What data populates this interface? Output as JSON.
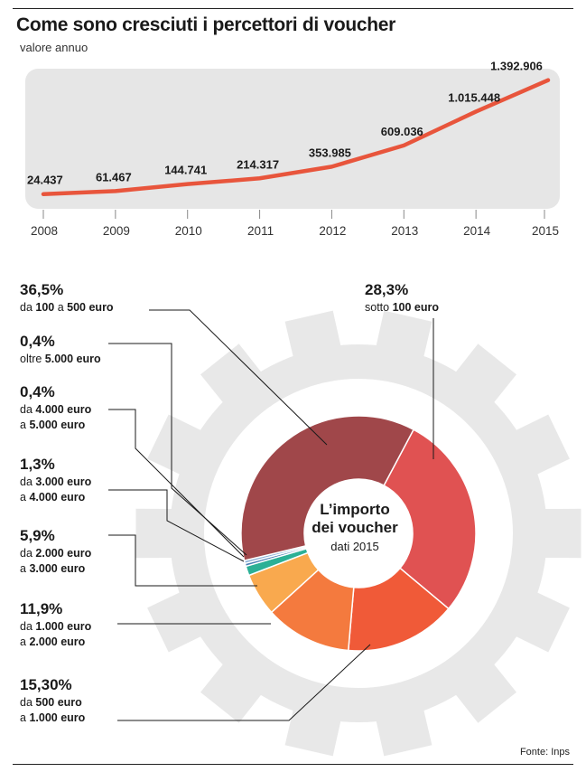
{
  "title": "Come sono cresciuti i percettori di voucher",
  "subtitle": "valore annuo",
  "source": "Fonte: Inps",
  "colors": {
    "line": "#e8553c",
    "panel": "#e6e6e6",
    "gear": "#e8e8e8"
  },
  "chart_data": [
    {
      "type": "line",
      "title": "Come sono cresciuti i percettori di voucher",
      "subtitle": "valore annuo",
      "x": [
        "2008",
        "2009",
        "2010",
        "2011",
        "2012",
        "2013",
        "2014",
        "2015"
      ],
      "values": [
        24437,
        61467,
        144741,
        214317,
        353985,
        609036,
        1015448,
        1392906
      ],
      "value_labels": [
        "24.437",
        "61.467",
        "144.741",
        "214.317",
        "353.985",
        "609.036",
        "1.015.448",
        "1.392.906"
      ],
      "ylim": [
        0,
        1400000
      ],
      "grid": false
    },
    {
      "type": "pie",
      "variant": "donut",
      "title": "L’importo dei voucher",
      "subtitle": "dati 2015",
      "slices": [
        {
          "pct": "28,3%",
          "value": 28.3,
          "pre": "sotto ",
          "bold": "100 euro",
          "color": "#e05252"
        },
        {
          "pct": "15,30%",
          "value": 15.3,
          "pre": "da ",
          "bold": "500 euro",
          "post": "",
          "line2pre": "a ",
          "line2bold": "1.000 euro",
          "color": "#f05a38"
        },
        {
          "pct": "11,9%",
          "value": 11.9,
          "pre": "da ",
          "bold": "1.000 euro",
          "line2pre": "a ",
          "line2bold": "2.000 euro",
          "color": "#f47a3e"
        },
        {
          "pct": "5,9%",
          "value": 5.9,
          "pre": "da ",
          "bold": "2.000 euro",
          "line2pre": "a ",
          "line2bold": "3.000 euro",
          "color": "#f9a94e"
        },
        {
          "pct": "1,3%",
          "value": 1.3,
          "pre": "da ",
          "bold": "3.000 euro",
          "line2pre": "a ",
          "line2bold": "4.000 euro",
          "color": "#2bb096"
        },
        {
          "pct": "0,4%",
          "value": 0.4,
          "pre": "da ",
          "bold": "4.000 euro",
          "line2pre": "a ",
          "line2bold": "5.000 euro",
          "color": "#4a7fb5"
        },
        {
          "pct": "0,4%",
          "value": 0.4,
          "pre": "oltre ",
          "bold": "5.000 euro",
          "color": "#8fb4d8"
        },
        {
          "pct": "36,5%",
          "value": 36.5,
          "pre": "da ",
          "bold": "100",
          "mid": " a ",
          "bold2": "500 euro",
          "color": "#a0474a"
        }
      ]
    }
  ]
}
